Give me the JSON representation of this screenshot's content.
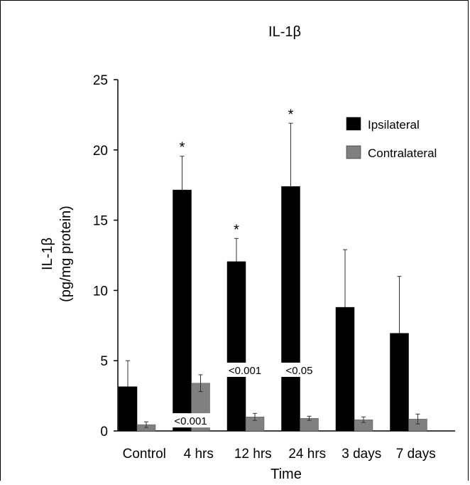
{
  "chart_data": {
    "type": "bar",
    "title": "IL-1β",
    "xlabel": "Time",
    "ylabel_line1": "IL-1β",
    "ylabel_line2": "(pg/mg protein)",
    "ylim": [
      0,
      25
    ],
    "yticks": [
      0,
      5,
      10,
      15,
      20,
      25
    ],
    "grid": false,
    "legend_position": "top-right",
    "categories": [
      "Control",
      "4 hrs",
      "12 hrs",
      "24 hrs",
      "3 days",
      "7 days"
    ],
    "series": [
      {
        "name": "Ipsilateral",
        "color": "#000000",
        "values": [
          3.15,
          17.15,
          12.05,
          17.4,
          8.8,
          6.95
        ],
        "error": [
          1.85,
          2.4,
          1.65,
          4.5,
          4.1,
          4.05
        ]
      },
      {
        "name": "Contralateral",
        "color": "#808080",
        "values": [
          0.45,
          3.4,
          1.0,
          0.9,
          0.8,
          0.85
        ],
        "error": [
          0.2,
          0.6,
          0.25,
          0.15,
          0.2,
          0.35
        ]
      }
    ],
    "significance_markers": [
      {
        "category": "4 hrs",
        "symbol": "*"
      },
      {
        "category": "12 hrs",
        "symbol": "*"
      },
      {
        "category": "24 hrs",
        "symbol": "*"
      }
    ],
    "p_value_labels": [
      {
        "category": "4 hrs",
        "text": "<0.001",
        "value": 0.35
      },
      {
        "category": "12 hrs",
        "text": "<0.001",
        "value": 3.95
      },
      {
        "category": "24 hrs",
        "text": "<0.05",
        "value": 3.95
      }
    ]
  }
}
